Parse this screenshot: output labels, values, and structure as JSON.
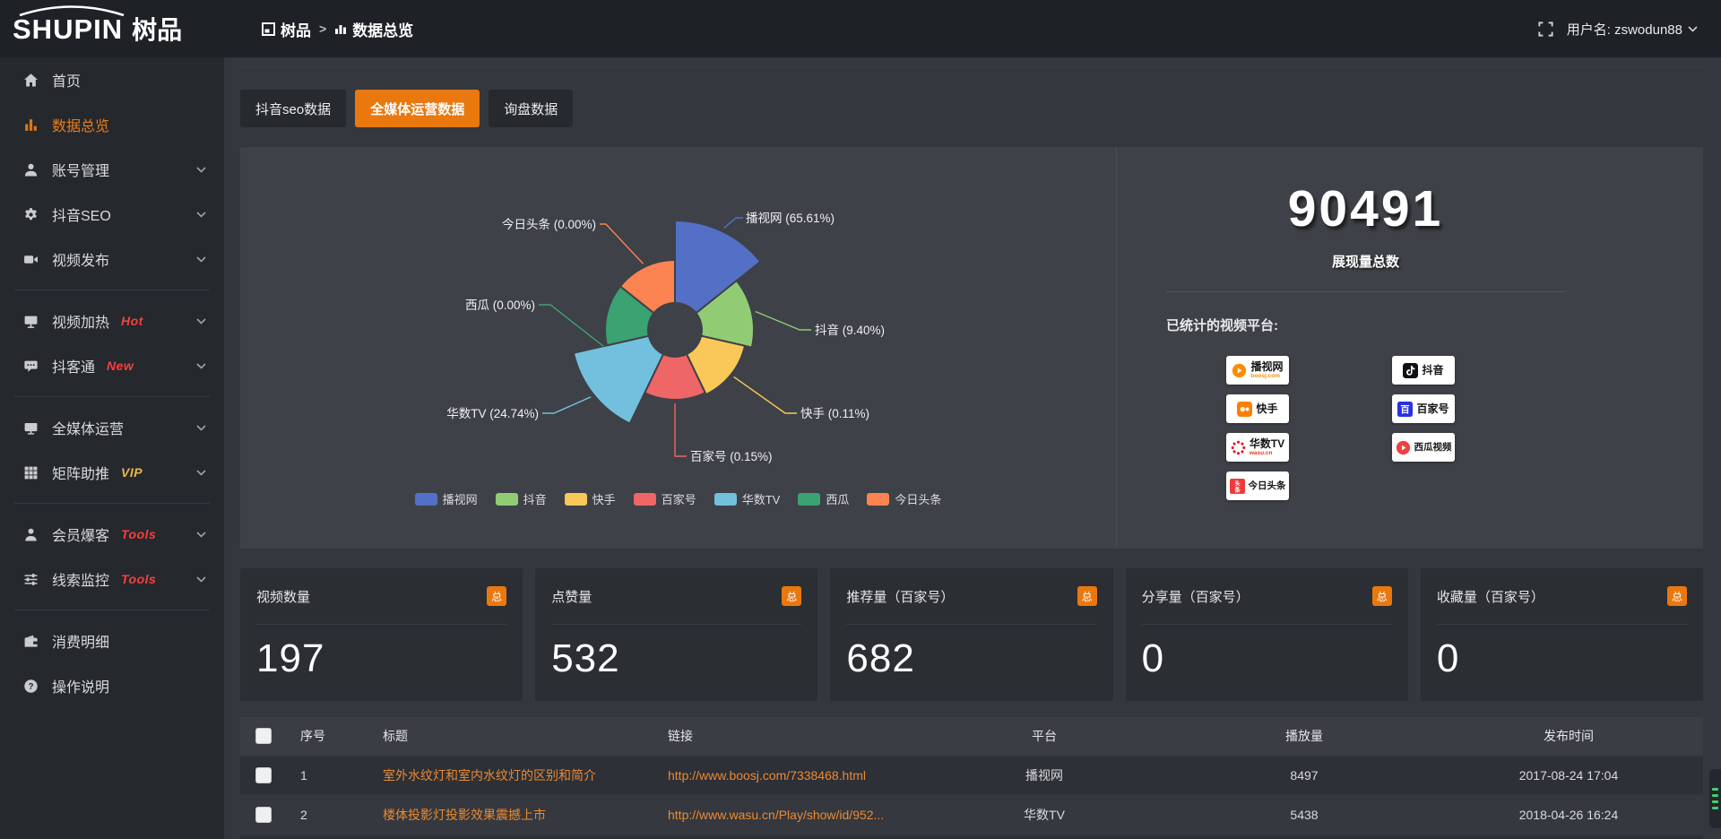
{
  "topbar": {
    "logo_primary": "SHUPIN",
    "logo_secondary": "树品",
    "breadcrumb": {
      "root": "树品",
      "separator": ">",
      "current": "数据总览"
    },
    "user_label": "用户名: zswodun88"
  },
  "sidebar": {
    "items": [
      {
        "label": "首页",
        "badge": ""
      },
      {
        "label": "数据总览",
        "badge": ""
      },
      {
        "label": "账号管理",
        "badge": ""
      },
      {
        "label": "抖音SEO",
        "badge": ""
      },
      {
        "label": "视频发布",
        "badge": ""
      },
      {
        "label": "视频加热",
        "badge": "Hot"
      },
      {
        "label": "抖客通",
        "badge": "New"
      },
      {
        "label": "全媒体运营",
        "badge": ""
      },
      {
        "label": "矩阵助推",
        "badge": "VIP"
      },
      {
        "label": "会员爆客",
        "badge": "Tools"
      },
      {
        "label": "线索监控",
        "badge": "Tools"
      },
      {
        "label": "消费明细",
        "badge": ""
      },
      {
        "label": "操作说明",
        "badge": ""
      }
    ]
  },
  "tabs": [
    {
      "label": "抖音seo数据",
      "active": false
    },
    {
      "label": "全媒体运营数据",
      "active": true
    },
    {
      "label": "询盘数据",
      "active": false
    }
  ],
  "chart_data": {
    "type": "pie",
    "variant": "nightingale-rose",
    "title": "",
    "categories": [
      "播视网",
      "抖音",
      "快手",
      "百家号",
      "华数TV",
      "西瓜",
      "今日头条"
    ],
    "values_pct": [
      65.61,
      9.4,
      0.11,
      0.15,
      24.74,
      0,
      0
    ],
    "colors": [
      "#5470c6",
      "#91cc75",
      "#fac858",
      "#ee6666",
      "#73c0de",
      "#3ba272",
      "#fc8452"
    ],
    "legend_position": "bottom",
    "label_format": "{name} ({pct}%)"
  },
  "summary": {
    "total_value": "90491",
    "total_label": "展现量总数",
    "platforms_heading": "已统计的视频平台:",
    "platforms": [
      {
        "name": "播视网",
        "sub": "boosj.com"
      },
      {
        "name": "抖音",
        "sub": ""
      },
      {
        "name": "快手",
        "sub": ""
      },
      {
        "name": "百家号",
        "sub": ""
      },
      {
        "name": "华数TV",
        "sub": "wasu.cn"
      },
      {
        "name": "西瓜视频",
        "sub": ""
      },
      {
        "name": "今日头条",
        "sub": ""
      }
    ]
  },
  "stat_cards": [
    {
      "title": "视频数量",
      "badge": "总",
      "value": "197"
    },
    {
      "title": "点赞量",
      "badge": "总",
      "value": "532"
    },
    {
      "title": "推荐量（百家号）",
      "badge": "总",
      "value": "682"
    },
    {
      "title": "分享量（百家号）",
      "badge": "总",
      "value": "0"
    },
    {
      "title": "收藏量（百家号）",
      "badge": "总",
      "value": "0"
    }
  ],
  "table": {
    "headers": [
      "序号",
      "标题",
      "链接",
      "平台",
      "播放量",
      "发布时间"
    ],
    "rows": [
      {
        "num": "1",
        "title": "室外水纹灯和室内水纹灯的区别和简介",
        "link": "http://www.boosj.com/7338468.html",
        "platform": "播视网",
        "plays": "8497",
        "time": "2017-08-24 17:04"
      },
      {
        "num": "2",
        "title": "楼体投影灯投影效果震撼上市",
        "link": "http://www.wasu.cn/Play/show/id/952...",
        "platform": "华数TV",
        "plays": "5438",
        "time": "2018-04-26 16:24"
      }
    ]
  },
  "colors": {
    "accent": "#e9780f",
    "hot_badge": "#f8403e",
    "vip_badge": "#eab54e",
    "link": "#ea8a33"
  }
}
